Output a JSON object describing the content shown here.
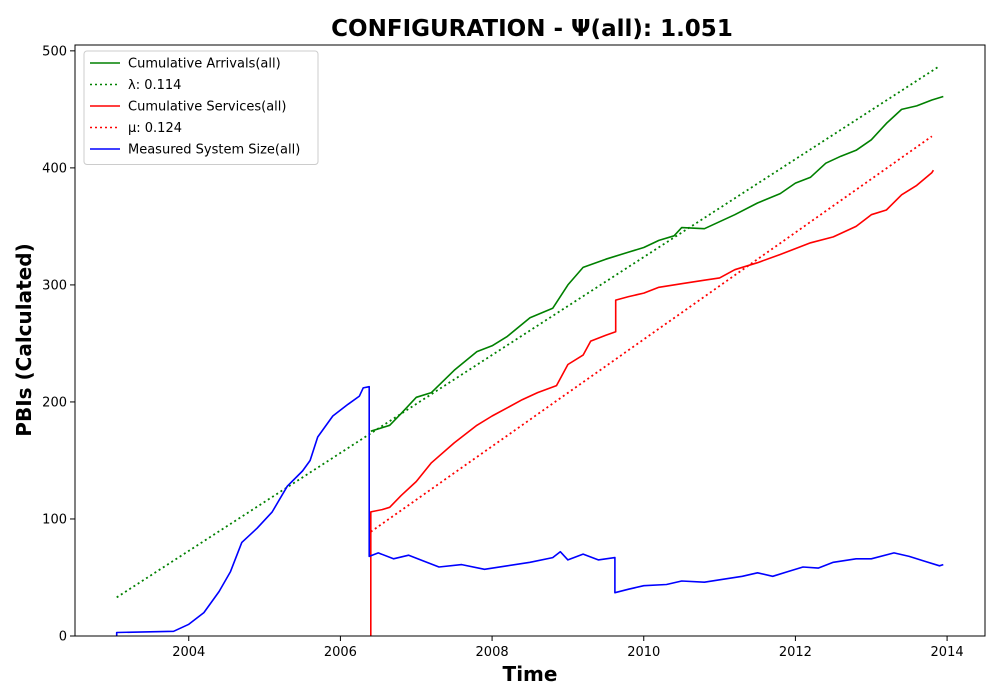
{
  "chart_data": {
    "type": "line",
    "title": "CONFIGURATION -  Ψ(all): 1.051",
    "xlabel": "Time",
    "ylabel": "PBIs (Calculated)",
    "xlim": [
      2002.5,
      2014.5
    ],
    "ylim": [
      0,
      505
    ],
    "x_ticks": [
      2004,
      2006,
      2008,
      2010,
      2012,
      2014
    ],
    "y_ticks": [
      0,
      100,
      200,
      300,
      400,
      500
    ],
    "grid": false,
    "legend_position": "upper-left",
    "colors": {
      "arrivals": "#008000",
      "services": "#ff0000",
      "system_size": "#0000ff"
    },
    "series": [
      {
        "name": "Cumulative Arrivals(all)",
        "style": "solid",
        "color": "#008000",
        "points": [
          [
            2006.4,
            175
          ],
          [
            2006.5,
            177
          ],
          [
            2006.65,
            180
          ],
          [
            2006.8,
            190
          ],
          [
            2007.0,
            204
          ],
          [
            2007.2,
            208
          ],
          [
            2007.5,
            227
          ],
          [
            2007.8,
            243
          ],
          [
            2008.0,
            248
          ],
          [
            2008.2,
            256
          ],
          [
            2008.5,
            272
          ],
          [
            2008.8,
            280
          ],
          [
            2009.0,
            300
          ],
          [
            2009.2,
            315
          ],
          [
            2009.5,
            322
          ],
          [
            2009.8,
            328
          ],
          [
            2010.0,
            332
          ],
          [
            2010.2,
            338
          ],
          [
            2010.4,
            342
          ],
          [
            2010.5,
            349
          ],
          [
            2010.8,
            348
          ],
          [
            2011.0,
            354
          ],
          [
            2011.2,
            360
          ],
          [
            2011.5,
            370
          ],
          [
            2011.8,
            378
          ],
          [
            2012.0,
            387
          ],
          [
            2012.2,
            392
          ],
          [
            2012.4,
            404
          ],
          [
            2012.6,
            410
          ],
          [
            2012.8,
            415
          ],
          [
            2013.0,
            424
          ],
          [
            2013.2,
            438
          ],
          [
            2013.4,
            450
          ],
          [
            2013.6,
            453
          ],
          [
            2013.8,
            458
          ],
          [
            2013.95,
            461
          ]
        ]
      },
      {
        "name": "λ: 0.114",
        "style": "dotted",
        "color": "#008000",
        "points": [
          [
            2003.05,
            33
          ],
          [
            2013.9,
            487
          ]
        ]
      },
      {
        "name": "Cumulative Services(all)",
        "style": "solid",
        "color": "#ff0000",
        "points": [
          [
            2006.4,
            0
          ],
          [
            2006.4,
            106
          ],
          [
            2006.55,
            108
          ],
          [
            2006.65,
            110
          ],
          [
            2006.8,
            120
          ],
          [
            2007.0,
            132
          ],
          [
            2007.2,
            148
          ],
          [
            2007.5,
            165
          ],
          [
            2007.8,
            180
          ],
          [
            2008.0,
            188
          ],
          [
            2008.2,
            195
          ],
          [
            2008.4,
            202
          ],
          [
            2008.6,
            208
          ],
          [
            2008.85,
            214
          ],
          [
            2009.0,
            232
          ],
          [
            2009.2,
            240
          ],
          [
            2009.3,
            252
          ],
          [
            2009.5,
            257
          ],
          [
            2009.63,
            260
          ],
          [
            2009.63,
            287
          ],
          [
            2009.8,
            290
          ],
          [
            2010.0,
            293
          ],
          [
            2010.2,
            298
          ],
          [
            2010.5,
            301
          ],
          [
            2010.8,
            304
          ],
          [
            2011.0,
            306
          ],
          [
            2011.2,
            313
          ],
          [
            2011.5,
            319
          ],
          [
            2011.8,
            326
          ],
          [
            2012.0,
            331
          ],
          [
            2012.2,
            336
          ],
          [
            2012.5,
            341
          ],
          [
            2012.8,
            350
          ],
          [
            2013.0,
            360
          ],
          [
            2013.2,
            364
          ],
          [
            2013.4,
            377
          ],
          [
            2013.6,
            385
          ],
          [
            2013.8,
            396
          ],
          [
            2013.82,
            398
          ]
        ]
      },
      {
        "name": "μ: 0.124",
        "style": "dotted",
        "color": "#ff0000",
        "points": [
          [
            2006.4,
            89
          ],
          [
            2013.8,
            427
          ]
        ]
      },
      {
        "name": "Measured System Size(all)",
        "style": "solid",
        "color": "#0000ff",
        "points": [
          [
            2003.05,
            0
          ],
          [
            2003.05,
            3
          ],
          [
            2003.8,
            4
          ],
          [
            2004.0,
            10
          ],
          [
            2004.2,
            20
          ],
          [
            2004.4,
            38
          ],
          [
            2004.55,
            55
          ],
          [
            2004.7,
            80
          ],
          [
            2004.9,
            92
          ],
          [
            2005.1,
            106
          ],
          [
            2005.3,
            128
          ],
          [
            2005.5,
            141
          ],
          [
            2005.6,
            150
          ],
          [
            2005.7,
            170
          ],
          [
            2005.9,
            188
          ],
          [
            2006.1,
            198
          ],
          [
            2006.25,
            205
          ],
          [
            2006.3,
            212
          ],
          [
            2006.38,
            213
          ],
          [
            2006.38,
            68
          ],
          [
            2006.5,
            71
          ],
          [
            2006.7,
            66
          ],
          [
            2006.9,
            69
          ],
          [
            2007.1,
            64
          ],
          [
            2007.3,
            59
          ],
          [
            2007.6,
            61
          ],
          [
            2007.9,
            57
          ],
          [
            2008.2,
            60
          ],
          [
            2008.5,
            63
          ],
          [
            2008.8,
            67
          ],
          [
            2008.9,
            72
          ],
          [
            2009.0,
            65
          ],
          [
            2009.2,
            70
          ],
          [
            2009.4,
            65
          ],
          [
            2009.62,
            67
          ],
          [
            2009.62,
            37
          ],
          [
            2009.8,
            40
          ],
          [
            2010.0,
            43
          ],
          [
            2010.3,
            44
          ],
          [
            2010.5,
            47
          ],
          [
            2010.8,
            46
          ],
          [
            2011.0,
            48
          ],
          [
            2011.3,
            51
          ],
          [
            2011.5,
            54
          ],
          [
            2011.7,
            51
          ],
          [
            2011.9,
            55
          ],
          [
            2012.1,
            59
          ],
          [
            2012.3,
            58
          ],
          [
            2012.5,
            63
          ],
          [
            2012.8,
            66
          ],
          [
            2013.0,
            66
          ],
          [
            2013.3,
            71
          ],
          [
            2013.5,
            68
          ],
          [
            2013.7,
            64
          ],
          [
            2013.9,
            60
          ],
          [
            2013.95,
            61
          ]
        ]
      }
    ]
  }
}
